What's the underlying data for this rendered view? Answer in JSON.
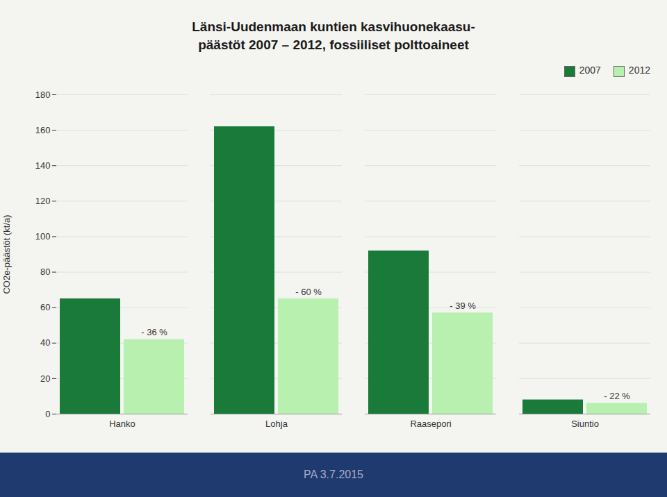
{
  "chart_data": {
    "type": "bar",
    "title": "Länsi-Uudenmaan kuntien kasvihuonekaasu-\npäästöt 2007 – 2012, fossiiliset polttoaineet",
    "caption": "PA 3.7.2015",
    "categories": [
      "Hanko",
      "Lohja",
      "Raasepori",
      "Siuntio"
    ],
    "series": [
      {
        "name": "2007",
        "color": "#1a7a3a",
        "values": [
          65,
          162,
          92,
          8
        ]
      },
      {
        "name": "2012",
        "color": "#b8f0b0",
        "values": [
          42,
          65,
          57,
          6
        ]
      }
    ],
    "annotations": [
      "- 36 %",
      "- 60 %",
      "- 39 %",
      "- 22 %"
    ],
    "ylabel": "CO2e-päästöt (kt/a)",
    "ylim": [
      0,
      180
    ],
    "yticks": [
      0,
      20,
      40,
      60,
      80,
      100,
      120,
      140,
      160,
      180
    ],
    "grid": true,
    "legend": "upper right"
  }
}
